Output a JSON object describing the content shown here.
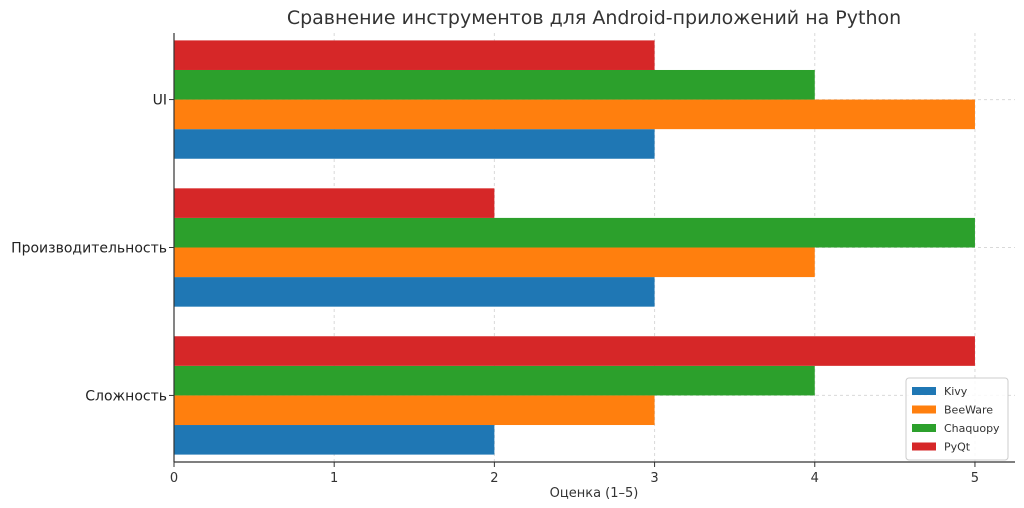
{
  "chart_data": {
    "type": "bar",
    "orientation": "horizontal",
    "title": "Сравнение инструментов для Android-приложений на Python",
    "xlabel": "Оценка (1–5)",
    "ylabel": "",
    "xlim": [
      0,
      5.25
    ],
    "xticks": [
      0,
      1,
      2,
      3,
      4,
      5
    ],
    "categories": [
      "Сложность",
      "Производительность",
      "UI"
    ],
    "series": [
      {
        "name": "Kivy",
        "color": "#1f77b4",
        "values": [
          2,
          3,
          3
        ]
      },
      {
        "name": "BeeWare",
        "color": "#ff7f0e",
        "values": [
          3,
          4,
          5
        ]
      },
      {
        "name": "Chaquopy",
        "color": "#2ca02c",
        "values": [
          4,
          5,
          4
        ]
      },
      {
        "name": "PyQt",
        "color": "#d62728",
        "values": [
          5,
          2,
          3
        ]
      }
    ],
    "grid": true,
    "legend_position": "bottom-right"
  }
}
